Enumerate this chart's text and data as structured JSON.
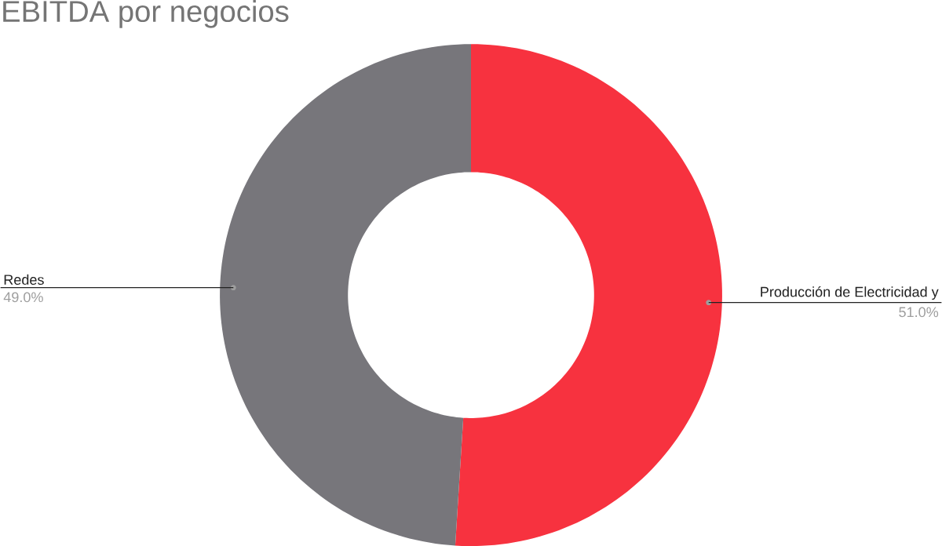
{
  "chart_data": {
    "type": "donut",
    "title": "EBITDA por negocios",
    "categories": [
      "Producción de Electricidad y",
      "Redes"
    ],
    "values": [
      51,
      49
    ],
    "value_labels": [
      "51.0%",
      "49.0%"
    ],
    "colors": [
      "#f7323f",
      "#77767b"
    ]
  }
}
